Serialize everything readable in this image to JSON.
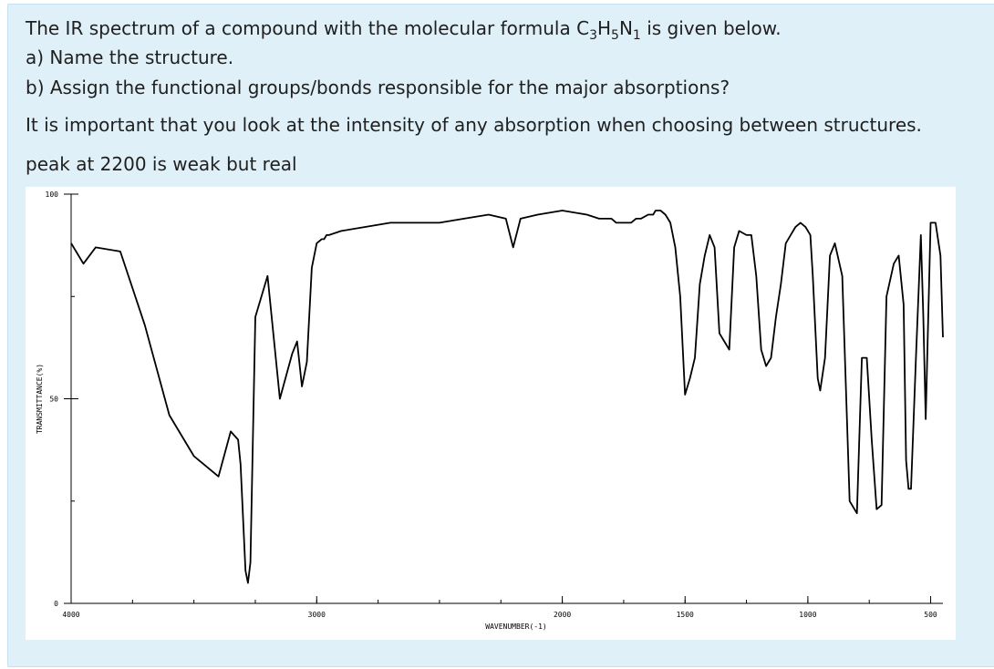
{
  "question": {
    "intro_before": "The IR spectrum of a compound with the molecular formula C",
    "formula_c_sub": "3",
    "formula_h": "H",
    "formula_h_sub": "5",
    "formula_n": "N",
    "formula_n_sub": "1",
    "intro_after": " is given below.",
    "part_a": "a) Name the structure.",
    "part_b": "b) Assign the functional groups/bonds responsible for the major absorptions?",
    "note": "It is important that you look at the intensity of any absorption when choosing between structures.",
    "hint": "peak at 2200 is weak but real"
  },
  "chart_data": {
    "type": "line",
    "title": "",
    "xlabel": "WAVENUMBER(-1)",
    "ylabel": "TRANSMITTANCE(%)",
    "xlim": [
      4000,
      450
    ],
    "ylim": [
      0,
      100
    ],
    "x_ticks": [
      4000,
      3000,
      2000,
      1500,
      1000,
      500
    ],
    "y_ticks": [
      0,
      50,
      100
    ],
    "grid": false,
    "series": [
      {
        "name": "",
        "x": [
          4000,
          3950,
          3900,
          3800,
          3700,
          3600,
          3500,
          3400,
          3350,
          3320,
          3310,
          3290,
          3280,
          3270,
          3250,
          3200,
          3150,
          3100,
          3080,
          3060,
          3040,
          3020,
          3000,
          2980,
          2970,
          2960,
          2950,
          2900,
          2800,
          2700,
          2600,
          2500,
          2400,
          2300,
          2230,
          2200,
          2170,
          2100,
          2000,
          1900,
          1850,
          1800,
          1780,
          1750,
          1720,
          1700,
          1680,
          1650,
          1640,
          1630,
          1620,
          1600,
          1580,
          1560,
          1540,
          1520,
          1500,
          1480,
          1460,
          1440,
          1420,
          1400,
          1380,
          1360,
          1340,
          1320,
          1300,
          1280,
          1250,
          1230,
          1210,
          1190,
          1170,
          1150,
          1130,
          1110,
          1090,
          1070,
          1050,
          1030,
          1010,
          990,
          980,
          960,
          950,
          930,
          910,
          890,
          860,
          830,
          800,
          780,
          760,
          740,
          720,
          700,
          680,
          650,
          630,
          610,
          600,
          590,
          580,
          560,
          540,
          530,
          520,
          500,
          480,
          460,
          450
        ],
        "values": [
          88,
          83,
          87,
          86,
          68,
          46,
          36,
          31,
          42,
          40,
          34,
          8,
          5,
          10,
          70,
          80,
          50,
          61,
          64,
          53,
          59,
          82,
          88,
          89,
          89,
          90,
          90,
          91,
          92,
          93,
          93,
          93,
          94,
          95,
          94,
          87,
          94,
          95,
          96,
          95,
          94,
          94,
          93,
          93,
          93,
          94,
          94,
          95,
          95,
          95,
          96,
          96,
          95,
          93,
          87,
          75,
          51,
          55,
          60,
          78,
          85,
          90,
          87,
          66,
          64,
          62,
          87,
          91,
          90,
          90,
          80,
          62,
          58,
          60,
          70,
          78,
          88,
          90,
          92,
          93,
          92,
          90,
          80,
          55,
          52,
          60,
          85,
          88,
          80,
          25,
          22,
          60,
          60,
          40,
          23,
          24,
          75,
          83,
          85,
          73,
          35,
          28,
          28,
          60,
          90,
          70,
          45,
          93,
          93,
          85,
          65
        ]
      }
    ]
  }
}
